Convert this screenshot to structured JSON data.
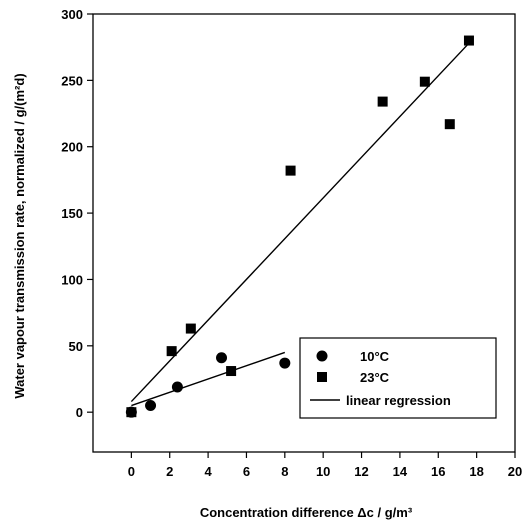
{
  "chart_data": {
    "type": "scatter",
    "xlabel": "Concentration difference Δc / g/m³",
    "ylabel": "Water vapour transmission rate, normalized / g/(m²d)",
    "xlim": [
      -2,
      20
    ],
    "ylim": [
      -30,
      300
    ],
    "x_ticks": [
      0,
      2,
      4,
      6,
      8,
      10,
      12,
      14,
      16,
      18,
      20
    ],
    "y_ticks": [
      0,
      50,
      100,
      150,
      200,
      250,
      300
    ],
    "grid": false,
    "legend_position": "bottom-right",
    "series": [
      {
        "name": "10°C",
        "marker": "circle",
        "points": [
          {
            "x": 0.0,
            "y": 0
          },
          {
            "x": 1.0,
            "y": 5
          },
          {
            "x": 2.4,
            "y": 19
          },
          {
            "x": 4.7,
            "y": 41
          },
          {
            "x": 8.0,
            "y": 37
          }
        ]
      },
      {
        "name": "23°C",
        "marker": "square",
        "points": [
          {
            "x": 0.0,
            "y": 0
          },
          {
            "x": 2.1,
            "y": 46
          },
          {
            "x": 3.1,
            "y": 63
          },
          {
            "x": 5.2,
            "y": 31
          },
          {
            "x": 8.3,
            "y": 182
          },
          {
            "x": 13.1,
            "y": 234
          },
          {
            "x": 15.3,
            "y": 249
          },
          {
            "x": 16.6,
            "y": 217
          },
          {
            "x": 17.6,
            "y": 280
          }
        ]
      },
      {
        "name": "linear regression",
        "marker": "line",
        "lines": [
          {
            "x1": 0,
            "y1": 5,
            "x2": 8,
            "y2": 45
          },
          {
            "x1": 0,
            "y1": 8,
            "x2": 17.6,
            "y2": 278
          }
        ]
      }
    ]
  }
}
